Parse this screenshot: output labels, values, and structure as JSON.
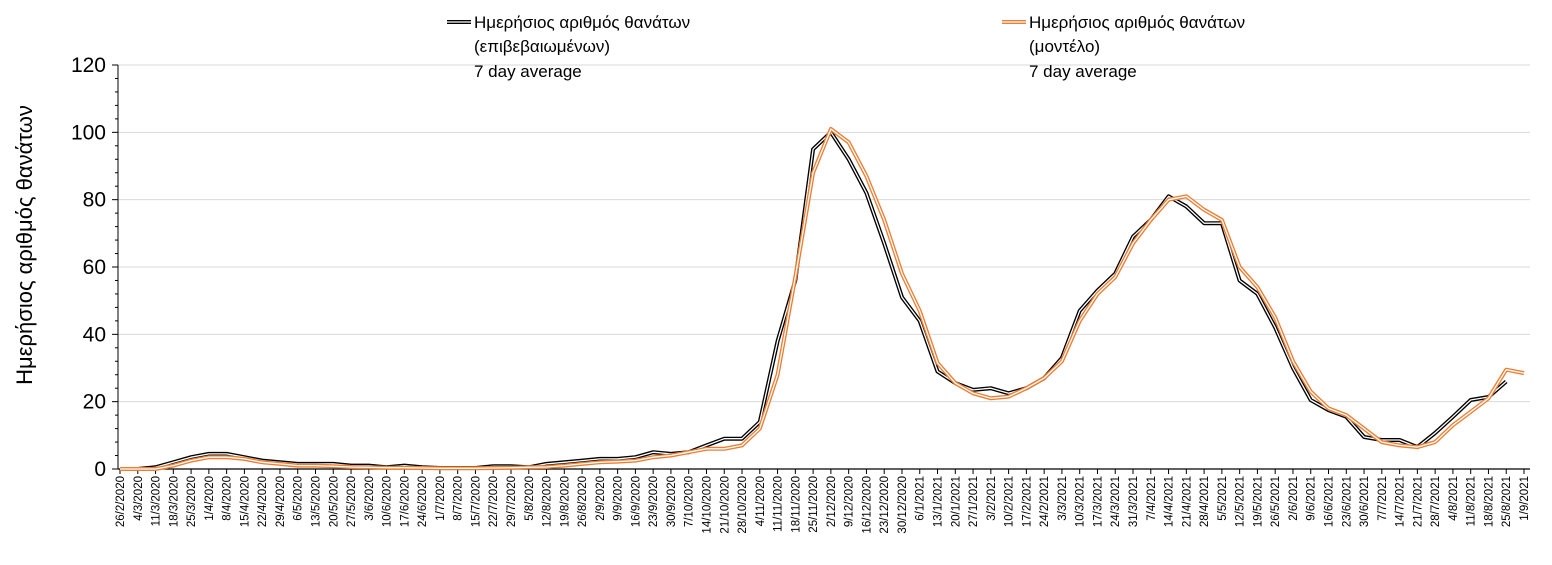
{
  "chart_data": {
    "type": "line",
    "title": "",
    "xlabel": "",
    "ylabel": "Ημερήσιος αριθμός θανάτων",
    "ylim": [
      0,
      120
    ],
    "yticks": [
      "0",
      "20",
      "40",
      "60",
      "80",
      "100",
      "120"
    ],
    "grid": true,
    "legend_placement": "top",
    "categories": [
      "26/2/2020",
      "4/3/2020",
      "11/3/2020",
      "18/3/2020",
      "25/3/2020",
      "1/4/2020",
      "8/4/2020",
      "15/4/2020",
      "22/4/2020",
      "29/4/2020",
      "6/5/2020",
      "13/5/2020",
      "20/5/2020",
      "27/5/2020",
      "3/6/2020",
      "10/6/2020",
      "17/6/2020",
      "24/6/2020",
      "1/7/2020",
      "8/7/2020",
      "15/7/2020",
      "22/7/2020",
      "29/7/2020",
      "5/8/2020",
      "12/8/2020",
      "19/8/2020",
      "26/8/2020",
      "2/9/2020",
      "9/9/2020",
      "16/9/2020",
      "23/9/2020",
      "30/9/2020",
      "7/10/2020",
      "14/10/2020",
      "21/10/2020",
      "28/10/2020",
      "4/11/2020",
      "11/11/2020",
      "18/11/2020",
      "25/11/2020",
      "2/12/2020",
      "9/12/2020",
      "16/12/2020",
      "23/12/2020",
      "30/12/2020",
      "6/1/2021",
      "13/1/2021",
      "20/1/2021",
      "27/1/2021",
      "3/2/2021",
      "10/2/2021",
      "17/2/2021",
      "24/2/2021",
      "3/3/2021",
      "10/3/2021",
      "17/3/2021",
      "24/3/2021",
      "31/3/2021",
      "7/4/2021",
      "14/4/2021",
      "21/4/2021",
      "28/4/2021",
      "5/5/2021",
      "12/5/2021",
      "19/5/2021",
      "26/5/2021",
      "2/6/2021",
      "9/6/2021",
      "16/6/2021",
      "23/6/2021",
      "30/6/2021",
      "7/7/2021",
      "14/7/2021",
      "21/7/2021",
      "28/7/2021",
      "4/8/2021",
      "11/8/2021",
      "18/8/2021",
      "25/8/2021",
      "1/9/2021"
    ],
    "series": [
      {
        "name": "Ημερήσιος αριθμός θανάτων (επιβεβαιωμένων) 7 day average",
        "legend_lines": [
          "Ημερήσιος αριθμός θανάτων",
          "(επιβεβαιωμένων)",
          "7 day average"
        ],
        "color": "#000000",
        "values": [
          0,
          0,
          0.5,
          2,
          3.5,
          4.5,
          4.5,
          3.5,
          2.5,
          2,
          1.5,
          1.5,
          1.5,
          1,
          1,
          0.5,
          1,
          0.5,
          0.3,
          0.3,
          0.3,
          0.8,
          0.8,
          0.5,
          1.5,
          2,
          2.5,
          3,
          3,
          3.5,
          5,
          4.5,
          5,
          7,
          9,
          9,
          14,
          38,
          56,
          95,
          100,
          92,
          82,
          67,
          51,
          44,
          29,
          25.5,
          23.5,
          24,
          22.5,
          24,
          27,
          33,
          47,
          53,
          58,
          69,
          74,
          81,
          78,
          73,
          73,
          56,
          52,
          42,
          30,
          20.5,
          17.5,
          15.5,
          9.5,
          8.6,
          8.6,
          6.5,
          10.7,
          15.5,
          20.5,
          21.4,
          26,
          null
        ]
      },
      {
        "name": "Ημερήσιος αριθμός θανάτων (μοντέλο) 7 day average",
        "legend_lines": [
          "Ημερήσιος αριθμός θανάτων",
          "(μοντέλο)",
          "7 day average"
        ],
        "color": "#ED7D31",
        "values": [
          0,
          0,
          0,
          1,
          2.5,
          3.5,
          3.5,
          3,
          2,
          1.5,
          1,
          1,
          0.8,
          0.6,
          0.5,
          0.4,
          0.4,
          0.3,
          0.2,
          0.2,
          0.2,
          0.3,
          0.4,
          0.5,
          0.6,
          1,
          1.5,
          2,
          2.2,
          2.5,
          3.5,
          4,
          5,
          6,
          6,
          7,
          12,
          28,
          57,
          88,
          101,
          97,
          87,
          74,
          58,
          47,
          31.5,
          25.5,
          22.5,
          21,
          21.5,
          24,
          27,
          32,
          44,
          52,
          57,
          67,
          74,
          80,
          81,
          77,
          74,
          60,
          54,
          45,
          32,
          23,
          18,
          16,
          12,
          8,
          7,
          6.5,
          8,
          13,
          17,
          21,
          29.5,
          28.5
        ]
      }
    ]
  }
}
